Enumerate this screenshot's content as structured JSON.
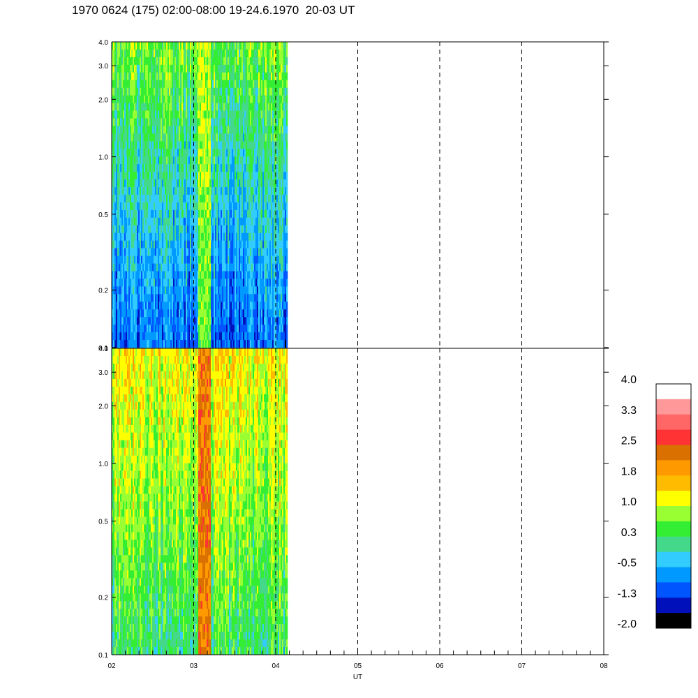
{
  "title": "1970 0624 (175) 02:00-08:00 19-24.6.1970  20-03 UT",
  "chart_data": {
    "type": "heatmap",
    "xlabel": "UT",
    "x_ticks": [
      "02",
      "03",
      "04",
      "05",
      "06",
      "07",
      "08"
    ],
    "xlim": [
      2,
      8
    ],
    "data_end_ut": 4.13,
    "y_scale": "log",
    "ylim": [
      0.1,
      4.0
    ],
    "y_ticks": [
      "4.0",
      "3.0",
      "2.0",
      "1.0",
      "0.5",
      "0.2",
      "0.1"
    ],
    "panels": [
      {
        "id": "upper",
        "dominant_levels": [
          -1.3,
          -0.5,
          0.3
        ],
        "burst_ut": [
          3.05,
          3.2
        ],
        "burst_level": 1.0
      },
      {
        "id": "lower",
        "dominant_levels": [
          0.3,
          1.0,
          1.8
        ],
        "burst_ut": [
          3.05,
          3.2
        ],
        "burst_level": 2.2
      }
    ],
    "colorbar": {
      "labels": [
        "4.0",
        "3.3",
        "2.5",
        "1.8",
        "1.0",
        "0.3",
        "-0.5",
        "-1.3",
        "-2.0"
      ],
      "colors": [
        "#ffffff",
        "#ff9999",
        "#ff6666",
        "#ff3333",
        "#d97000",
        "#ff9900",
        "#ffbb00",
        "#ffff00",
        "#99ff33",
        "#33ee33",
        "#44d98a",
        "#33ccff",
        "#0099ff",
        "#0055ff",
        "#0011bb",
        "#000000"
      ]
    }
  }
}
